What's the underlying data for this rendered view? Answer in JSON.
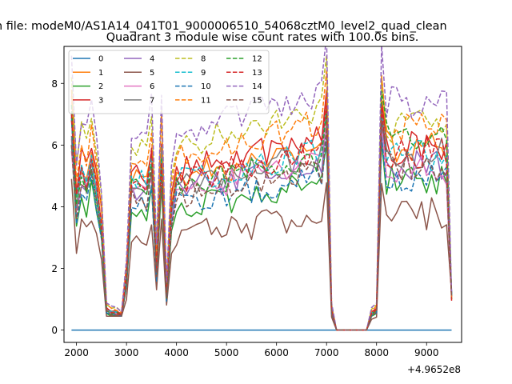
{
  "chart_data": {
    "type": "line",
    "suptitle": "n file: modeM0/AS1A14_041T01_9000006510_54068cztM0_level2_quad_clean",
    "title": "Quadrant 3 module wise count rates with 100.0s bins.",
    "xlabel": "",
    "ylabel": "",
    "x_offset_label": "+4.9652e8",
    "xlim": [
      1750,
      9700
    ],
    "ylim": [
      -0.4,
      9.2
    ],
    "x_ticks": [
      2000,
      3000,
      4000,
      5000,
      6000,
      7000,
      8000,
      9000
    ],
    "x_tick_labels": [
      "2000",
      "3000",
      "4000",
      "5000",
      "6000",
      "7000",
      "8000",
      "9000"
    ],
    "y_ticks": [
      0,
      2,
      4,
      6,
      8
    ],
    "y_tick_labels": [
      "0",
      "2",
      "4",
      "6",
      "8"
    ],
    "grid": false,
    "legend_position": "upper-left",
    "legend_columns": 4,
    "x": [
      1900,
      2000,
      2100,
      2200,
      2300,
      2400,
      2500,
      2600,
      2700,
      2800,
      2900,
      3000,
      3100,
      3200,
      3300,
      3400,
      3500,
      3600,
      3700,
      3800,
      3900,
      4000,
      4100,
      4200,
      4300,
      4400,
      4500,
      4600,
      4700,
      4800,
      4900,
      5000,
      5100,
      5200,
      5300,
      5400,
      5500,
      5600,
      5700,
      5800,
      5900,
      6000,
      6100,
      6200,
      6300,
      6400,
      6500,
      6600,
      6700,
      6800,
      6900,
      7000,
      7100,
      7200,
      7300,
      7400,
      7500,
      7600,
      7700,
      7800,
      7900,
      8000,
      8100,
      8200,
      8300,
      8400,
      8500,
      8600,
      8700,
      8800,
      8900,
      9000,
      9100,
      9200,
      9300,
      9400,
      9500
    ],
    "profile": {
      "base_first": 1.0,
      "base_rise": [
        1.0,
        0.72,
        0.92,
        0.83,
        0.98,
        0.8,
        0.6,
        0.12,
        0.1,
        0.1,
        0.08,
        0.3,
        0.85,
        0.83,
        0.85,
        0.8,
        0.96,
        0.35,
        1.0,
        0.2,
        0.68
      ],
      "lull_x": [
        7100,
        7200,
        7300,
        7400,
        7500,
        7600,
        7700,
        7800,
        7900
      ],
      "lull_values": [
        0.12,
        0.0,
        0.0,
        0.0,
        0.0,
        0.0,
        0.0,
        0.0,
        0.1
      ],
      "second_segment_start": 8000
    },
    "series": [
      {
        "name": "0",
        "color": "#1f77b4",
        "dash": "solid",
        "level": 0.0,
        "start": 0.0,
        "seg2": 0.0,
        "values_constant": 0.0
      },
      {
        "name": "1",
        "color": "#ff7f0e",
        "dash": "solid",
        "level": 5.6,
        "start": 7.8,
        "seg2": 6.0
      },
      {
        "name": "2",
        "color": "#2ca02c",
        "dash": "solid",
        "level": 4.5,
        "start": 6.0,
        "seg2": 4.9
      },
      {
        "name": "3",
        "color": "#d62728",
        "dash": "solid",
        "level": 5.9,
        "start": 6.8,
        "seg2": 5.9
      },
      {
        "name": "4",
        "color": "#9467bd",
        "dash": "solid",
        "level": 5.2,
        "start": 6.2,
        "seg2": 5.4
      },
      {
        "name": "5",
        "color": "#8c564b",
        "dash": "solid",
        "level": 3.5,
        "start": 4.9,
        "seg2": 3.8
      },
      {
        "name": "6",
        "color": "#e377c2",
        "dash": "solid",
        "level": 5.1,
        "start": 5.8,
        "seg2": 5.2
      },
      {
        "name": "7",
        "color": "#7f7f7f",
        "dash": "solid",
        "level": 5.4,
        "start": 6.3,
        "seg2": 5.7
      },
      {
        "name": "8",
        "color": "#bcbd22",
        "dash": "dashed",
        "level": 6.8,
        "start": 8.2,
        "seg2": 6.6
      },
      {
        "name": "9",
        "color": "#17becf",
        "dash": "dashed",
        "level": 5.5,
        "start": 7.0,
        "seg2": 5.6
      },
      {
        "name": "10",
        "color": "#1f77b4",
        "dash": "dashed",
        "level": 4.7,
        "start": 6.9,
        "seg2": 5.0
      },
      {
        "name": "11",
        "color": "#ff7f0e",
        "dash": "dashed",
        "level": 6.4,
        "start": 7.6,
        "seg2": 6.6
      },
      {
        "name": "12",
        "color": "#2ca02c",
        "dash": "dashed",
        "level": 5.3,
        "start": 7.3,
        "seg2": 6.2
      },
      {
        "name": "13",
        "color": "#d62728",
        "dash": "dashed",
        "level": 5.5,
        "start": 7.0,
        "seg2": 5.8
      },
      {
        "name": "14",
        "color": "#9467bd",
        "dash": "dashed",
        "level": 7.3,
        "start": 8.9,
        "seg2": 7.4
      },
      {
        "name": "15",
        "color": "#8c564b",
        "dash": "dashed",
        "level": 4.9,
        "start": 6.0,
        "seg2": 5.4
      }
    ]
  }
}
